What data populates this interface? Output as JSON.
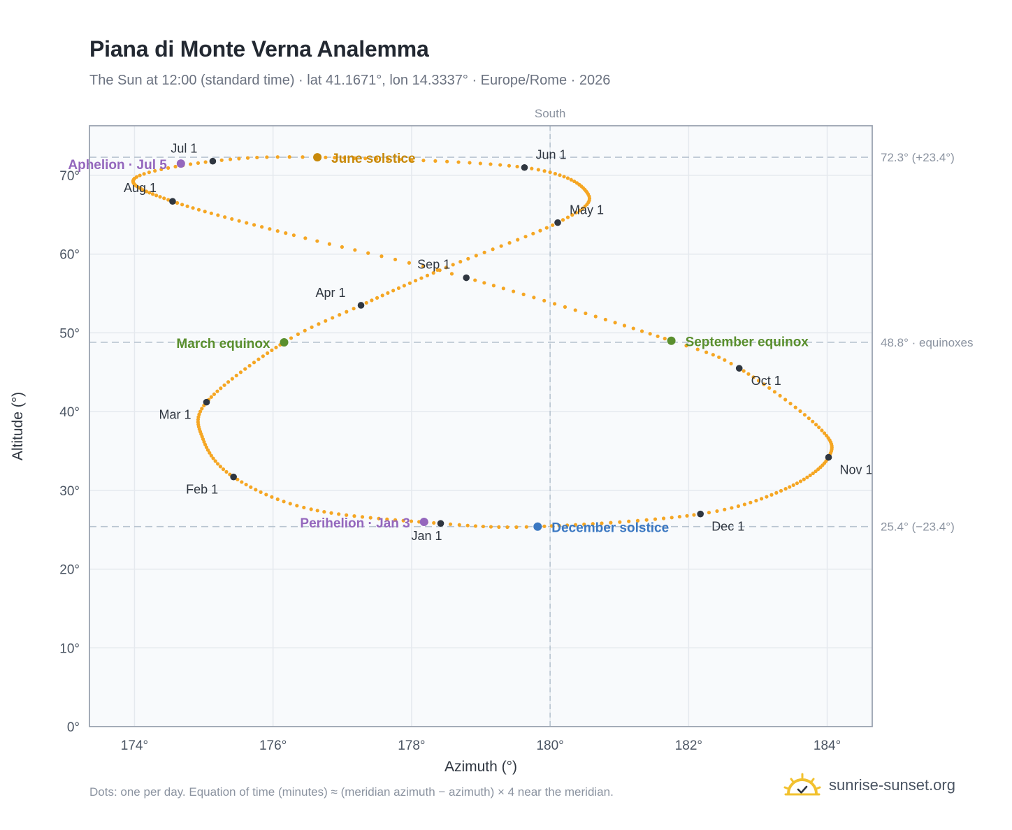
{
  "title": "Piana di Monte Verna Analemma",
  "subtitle": "The Sun at 12:00 (standard time) · lat 41.1671°, lon 14.3337° · Europe/Rome · 2026",
  "footnote": "Dots: one per day. Equation of time (minutes) ≈ (meridian azimuth − azimuth) × 4 near the meridian.",
  "brand": {
    "name": "sunrise-sunset.org",
    "logo_icon": "sun-checkmark-icon"
  },
  "colors": {
    "curve": "#f5a623",
    "month_marker": "#2f3640",
    "june": "#c8890a",
    "equinox": "#5a8f2e",
    "december": "#3b78c2",
    "apsis": "#9467bd",
    "plot_bg": "#f8fafc",
    "grid": "#e5e9ee",
    "ref_line": "#b8c4d0"
  },
  "chart_data": {
    "type": "scatter",
    "xlabel": "Azimuth (°)",
    "ylabel": "Altitude (°)",
    "xlim": [
      173.35,
      184.65
    ],
    "ylim": [
      0,
      76.3
    ],
    "grid": true,
    "x_ticks": [
      "174°",
      "176°",
      "178°",
      "180°",
      "182°",
      "184°"
    ],
    "y_ticks": [
      "0°",
      "10°",
      "20°",
      "30°",
      "40°",
      "50°",
      "60°",
      "70°"
    ],
    "meridian": {
      "azimuth": 180,
      "label": "South"
    },
    "reference_lines": [
      {
        "altitude": 72.3,
        "label": "72.3° (+23.4°)"
      },
      {
        "altitude": 48.8,
        "label": "48.8° · equinoxes"
      },
      {
        "altitude": 25.4,
        "label": "25.4° (−23.4°)"
      }
    ],
    "month_markers": [
      {
        "label": "Jan 1",
        "azimuth": 178.42,
        "altitude": 25.8
      },
      {
        "label": "Feb 1",
        "azimuth": 175.43,
        "altitude": 31.7
      },
      {
        "label": "Mar 1",
        "azimuth": 175.04,
        "altitude": 41.2
      },
      {
        "label": "Apr 1",
        "azimuth": 177.27,
        "altitude": 53.5
      },
      {
        "label": "May 1",
        "azimuth": 180.11,
        "altitude": 64.0
      },
      {
        "label": "Jun 1",
        "azimuth": 179.63,
        "altitude": 71.0
      },
      {
        "label": "Jul 1",
        "azimuth": 175.13,
        "altitude": 71.8
      },
      {
        "label": "Aug 1",
        "azimuth": 174.55,
        "altitude": 66.7
      },
      {
        "label": "Sep 1",
        "azimuth": 178.79,
        "altitude": 57.0
      },
      {
        "label": "Oct 1",
        "azimuth": 182.73,
        "altitude": 45.5
      },
      {
        "label": "Nov 1",
        "azimuth": 184.02,
        "altitude": 34.2
      },
      {
        "label": "Dec 1",
        "azimuth": 182.17,
        "altitude": 27.0
      }
    ],
    "events": [
      {
        "label": "June solstice",
        "azimuth": 176.64,
        "altitude": 72.3,
        "color_key": "june"
      },
      {
        "label": "March equinox",
        "azimuth": 176.16,
        "altitude": 48.8,
        "color_key": "equinox"
      },
      {
        "label": "September equinox",
        "azimuth": 181.75,
        "altitude": 49.0,
        "color_key": "equinox"
      },
      {
        "label": "December solstice",
        "azimuth": 179.82,
        "altitude": 25.4,
        "color_key": "december"
      },
      {
        "label": "Aphelion · Jul 5",
        "azimuth": 174.67,
        "altitude": 71.5,
        "color_key": "apsis"
      },
      {
        "label": "Perihelion · Jan 3",
        "azimuth": 178.18,
        "altitude": 26.0,
        "color_key": "apsis"
      }
    ],
    "series": [
      {
        "points_per": "day",
        "anchors": [
          [
            0,
            178.42,
            25.8
          ],
          [
            17,
            176.55,
            27.6
          ],
          [
            31,
            175.43,
            31.7
          ],
          [
            45,
            174.99,
            36.5
          ],
          [
            59,
            175.04,
            41.2
          ],
          [
            79,
            176.16,
            48.8
          ],
          [
            90,
            177.27,
            53.5
          ],
          [
            105,
            178.5,
            58.3
          ],
          [
            120,
            180.11,
            64.0
          ],
          [
            133,
            180.55,
            67.6
          ],
          [
            151,
            179.63,
            71.0
          ],
          [
            171,
            176.64,
            72.3
          ],
          [
            181,
            175.13,
            71.8
          ],
          [
            194,
            174.0,
            69.6
          ],
          [
            212,
            174.55,
            66.7
          ],
          [
            230,
            176.3,
            62.4
          ],
          [
            243,
            178.79,
            57.0
          ],
          [
            265,
            181.75,
            49.0
          ],
          [
            273,
            182.73,
            45.5
          ],
          [
            290,
            183.88,
            38.0
          ],
          [
            304,
            184.02,
            34.2
          ],
          [
            320,
            183.4,
            30.2
          ],
          [
            334,
            182.17,
            27.0
          ],
          [
            354,
            179.82,
            25.4
          ],
          [
            365,
            178.42,
            25.8
          ]
        ]
      }
    ]
  }
}
